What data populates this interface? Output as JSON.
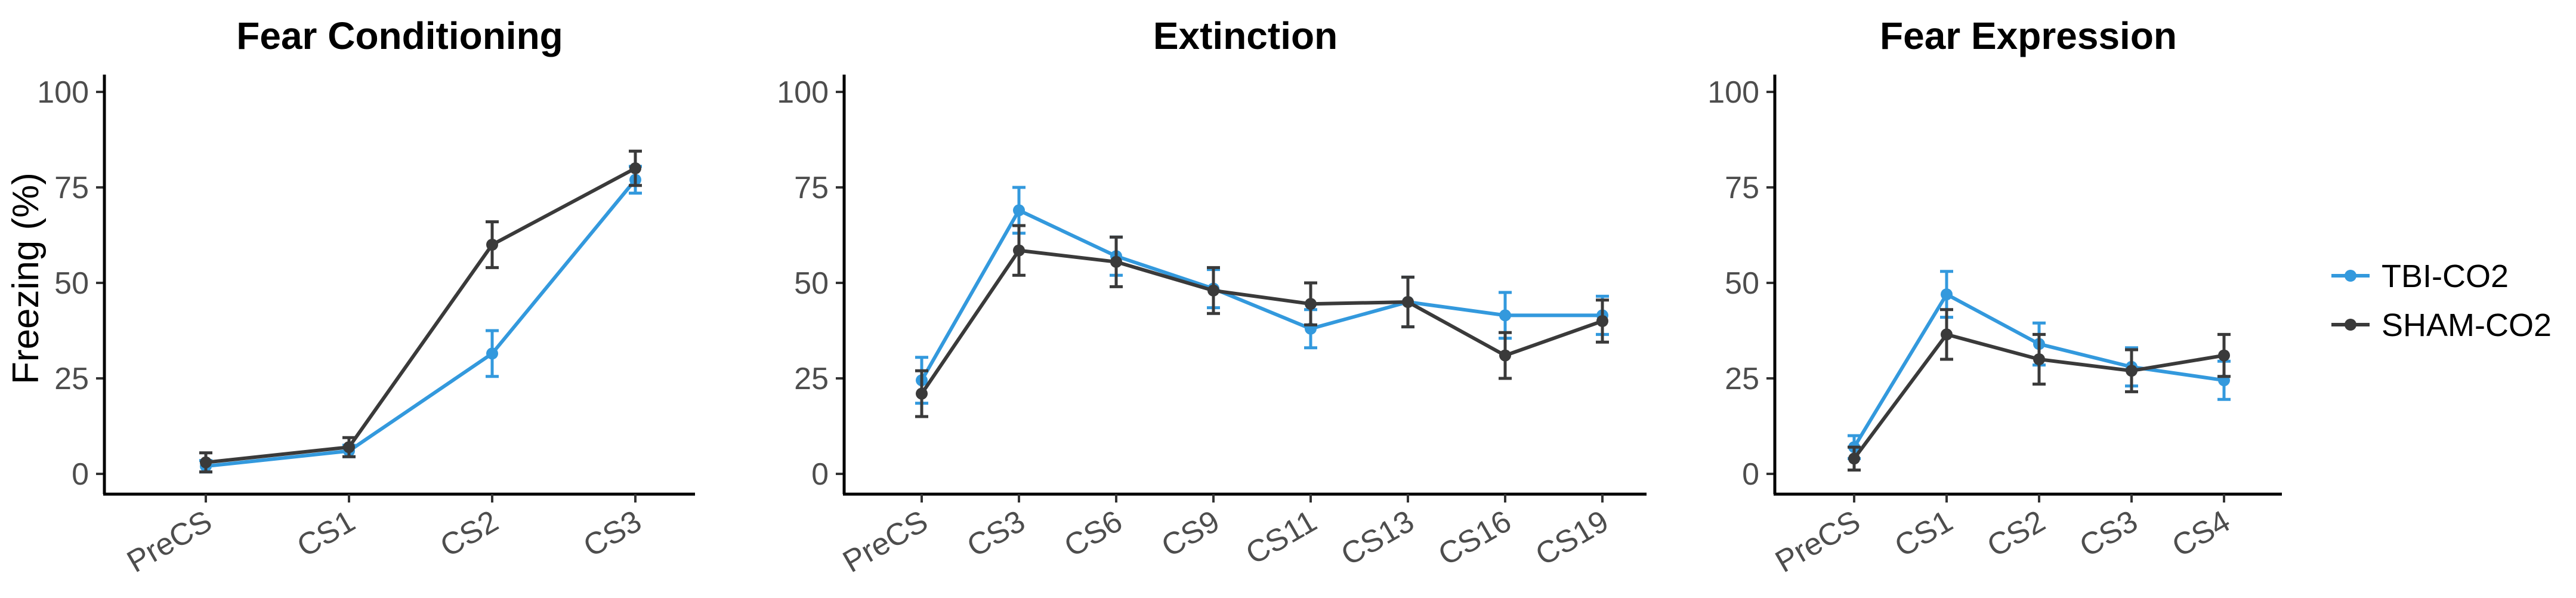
{
  "chart_data": [
    {
      "type": "line",
      "title": "Fear Conditioning",
      "xlabel": "",
      "ylabel": "Freezing (%)",
      "ylim": [
        0,
        100
      ],
      "yticks": [
        0,
        25,
        50,
        75,
        100
      ],
      "categories": [
        "PreCS",
        "CS1",
        "CS2",
        "CS3"
      ],
      "series": [
        {
          "name": "TBI-CO2",
          "color": "#3399dd",
          "values": [
            2,
            6,
            31.5,
            77
          ],
          "err": [
            1.5,
            1.5,
            6,
            3.5
          ]
        },
        {
          "name": "SHAM-CO2",
          "color": "#3a3a3a",
          "values": [
            3,
            7,
            60,
            80
          ],
          "err": [
            2.5,
            2.5,
            6,
            4.5
          ]
        }
      ]
    },
    {
      "type": "line",
      "title": "Extinction",
      "xlabel": "",
      "ylabel": "",
      "ylim": [
        0,
        100
      ],
      "yticks": [
        0,
        25,
        50,
        75,
        100
      ],
      "categories": [
        "PreCS",
        "CS3",
        "CS6",
        "CS9",
        "CS11",
        "CS13",
        "CS16",
        "CS19"
      ],
      "series": [
        {
          "name": "TBI-CO2",
          "color": "#3399dd",
          "values": [
            24.5,
            69,
            57,
            48.5,
            38,
            45,
            41.5,
            41.5
          ],
          "err": [
            6,
            6,
            5,
            5,
            5,
            6.5,
            6,
            5
          ]
        },
        {
          "name": "SHAM-CO2",
          "color": "#3a3a3a",
          "values": [
            21,
            58.5,
            55.5,
            48,
            44.5,
            45,
            31,
            40
          ],
          "err": [
            6,
            6.5,
            6.5,
            6,
            5.5,
            6.5,
            6,
            5.5
          ]
        }
      ]
    },
    {
      "type": "line",
      "title": "Fear Expression",
      "xlabel": "",
      "ylabel": "",
      "ylim": [
        0,
        100
      ],
      "yticks": [
        0,
        25,
        50,
        75,
        100
      ],
      "categories": [
        "PreCS",
        "CS1",
        "CS2",
        "CS3",
        "CS4"
      ],
      "series": [
        {
          "name": "TBI-CO2",
          "color": "#3399dd",
          "values": [
            7,
            47,
            34,
            28,
            24.5
          ],
          "err": [
            3,
            6,
            5.5,
            5,
            5
          ]
        },
        {
          "name": "SHAM-CO2",
          "color": "#3a3a3a",
          "values": [
            4,
            36.5,
            30,
            27,
            31
          ],
          "err": [
            3,
            6.5,
            6.5,
            5.5,
            5.5
          ]
        }
      ]
    }
  ],
  "legend": [
    {
      "label": "TBI-CO2",
      "color": "#3399dd"
    },
    {
      "label": "SHAM-CO2",
      "color": "#3a3a3a"
    }
  ]
}
